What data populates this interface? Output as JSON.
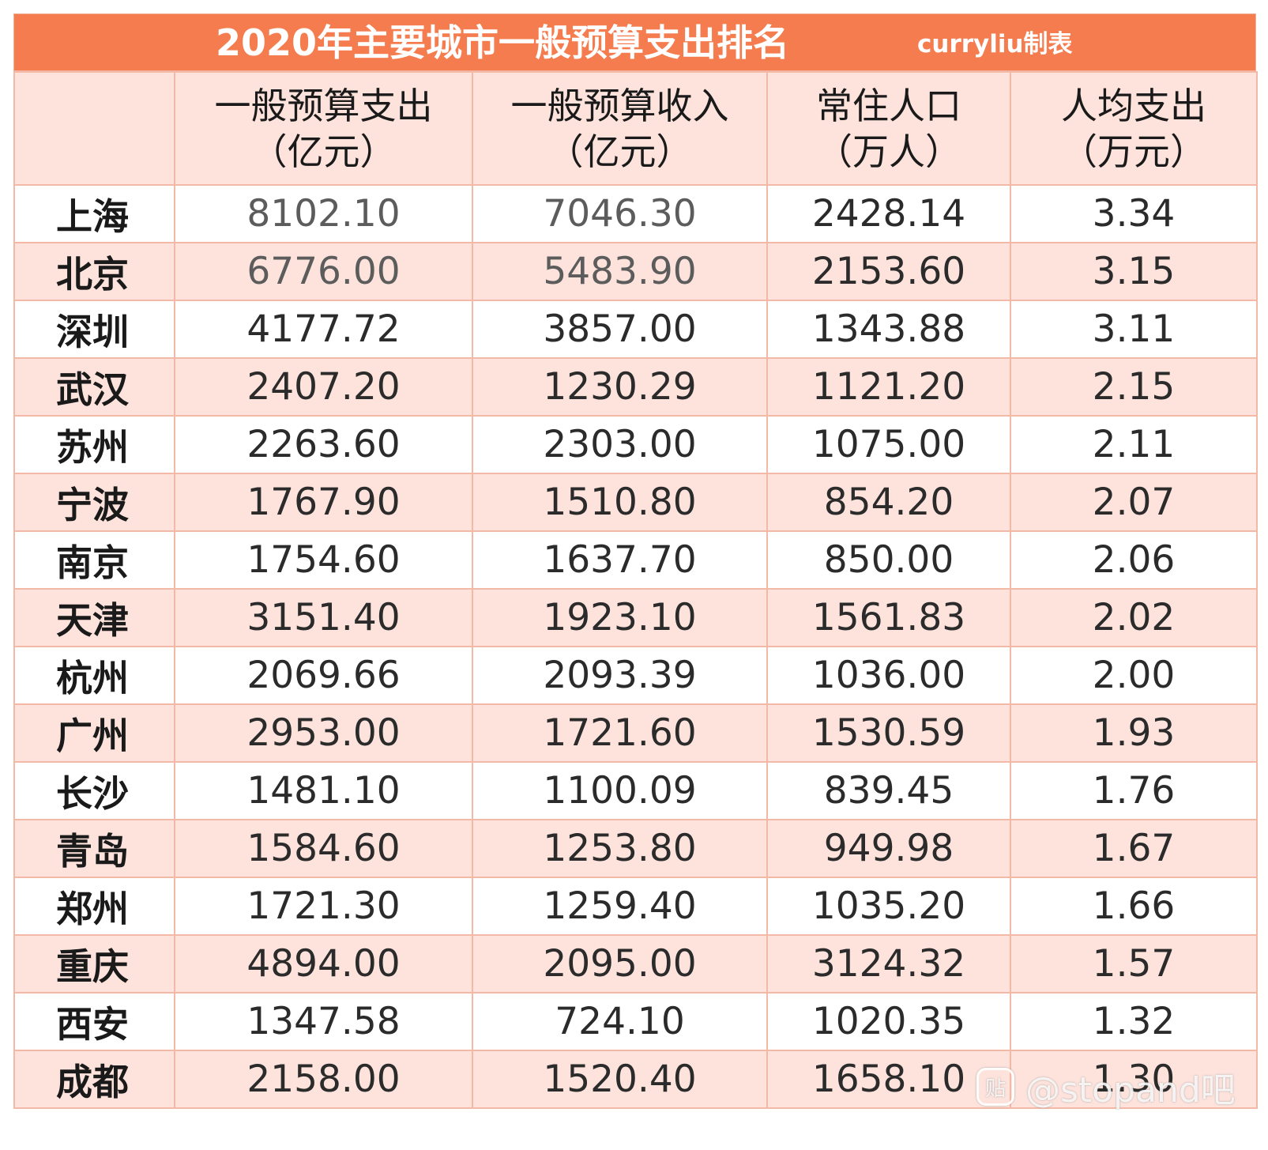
{
  "title": "2020年主要城市一般预算支出排名",
  "credit": "curryliu制表",
  "headers": [
    {
      "line1": "",
      "line2": ""
    },
    {
      "line1": "一般预算支出",
      "line2": "（亿元）"
    },
    {
      "line1": "一般预算收入",
      "line2": "（亿元）"
    },
    {
      "line1": "常住人口",
      "line2": "（万人）"
    },
    {
      "line1": "人均支出",
      "line2": "（万元）"
    }
  ],
  "rows": [
    {
      "city": "上海",
      "expenditure": "8102.10",
      "revenue": "7046.30",
      "population": "2428.14",
      "per_capita": "3.34"
    },
    {
      "city": "北京",
      "expenditure": "6776.00",
      "revenue": "5483.90",
      "population": "2153.60",
      "per_capita": "3.15"
    },
    {
      "city": "深圳",
      "expenditure": "4177.72",
      "revenue": "3857.00",
      "population": "1343.88",
      "per_capita": "3.11"
    },
    {
      "city": "武汉",
      "expenditure": "2407.20",
      "revenue": "1230.29",
      "population": "1121.20",
      "per_capita": "2.15"
    },
    {
      "city": "苏州",
      "expenditure": "2263.60",
      "revenue": "2303.00",
      "population": "1075.00",
      "per_capita": "2.11"
    },
    {
      "city": "宁波",
      "expenditure": "1767.90",
      "revenue": "1510.80",
      "population": "854.20",
      "per_capita": "2.07"
    },
    {
      "city": "南京",
      "expenditure": "1754.60",
      "revenue": "1637.70",
      "population": "850.00",
      "per_capita": "2.06"
    },
    {
      "city": "天津",
      "expenditure": "3151.40",
      "revenue": "1923.10",
      "population": "1561.83",
      "per_capita": "2.02"
    },
    {
      "city": "杭州",
      "expenditure": "2069.66",
      "revenue": "2093.39",
      "population": "1036.00",
      "per_capita": "2.00"
    },
    {
      "city": "广州",
      "expenditure": "2953.00",
      "revenue": "1721.60",
      "population": "1530.59",
      "per_capita": "1.93"
    },
    {
      "city": "长沙",
      "expenditure": "1481.10",
      "revenue": "1100.09",
      "population": "839.45",
      "per_capita": "1.76"
    },
    {
      "city": "青岛",
      "expenditure": "1584.60",
      "revenue": "1253.80",
      "population": "949.98",
      "per_capita": "1.67"
    },
    {
      "city": "郑州",
      "expenditure": "1721.30",
      "revenue": "1259.40",
      "population": "1035.20",
      "per_capita": "1.66"
    },
    {
      "city": "重庆",
      "expenditure": "4894.00",
      "revenue": "2095.00",
      "population": "3124.32",
      "per_capita": "1.57"
    },
    {
      "city": "西安",
      "expenditure": "1347.58",
      "revenue": "724.10",
      "population": "1020.35",
      "per_capita": "1.32"
    },
    {
      "city": "成都",
      "expenditure": "2158.00",
      "revenue": "1520.40",
      "population": "1658.10",
      "per_capita": "1.30"
    }
  ],
  "watermark": {
    "icon": "贴",
    "text": "@stopand吧"
  },
  "colors": {
    "title_bg": "#f47c4e",
    "stripe_bg": "#fde3dc",
    "border": "#f3b8a6"
  }
}
